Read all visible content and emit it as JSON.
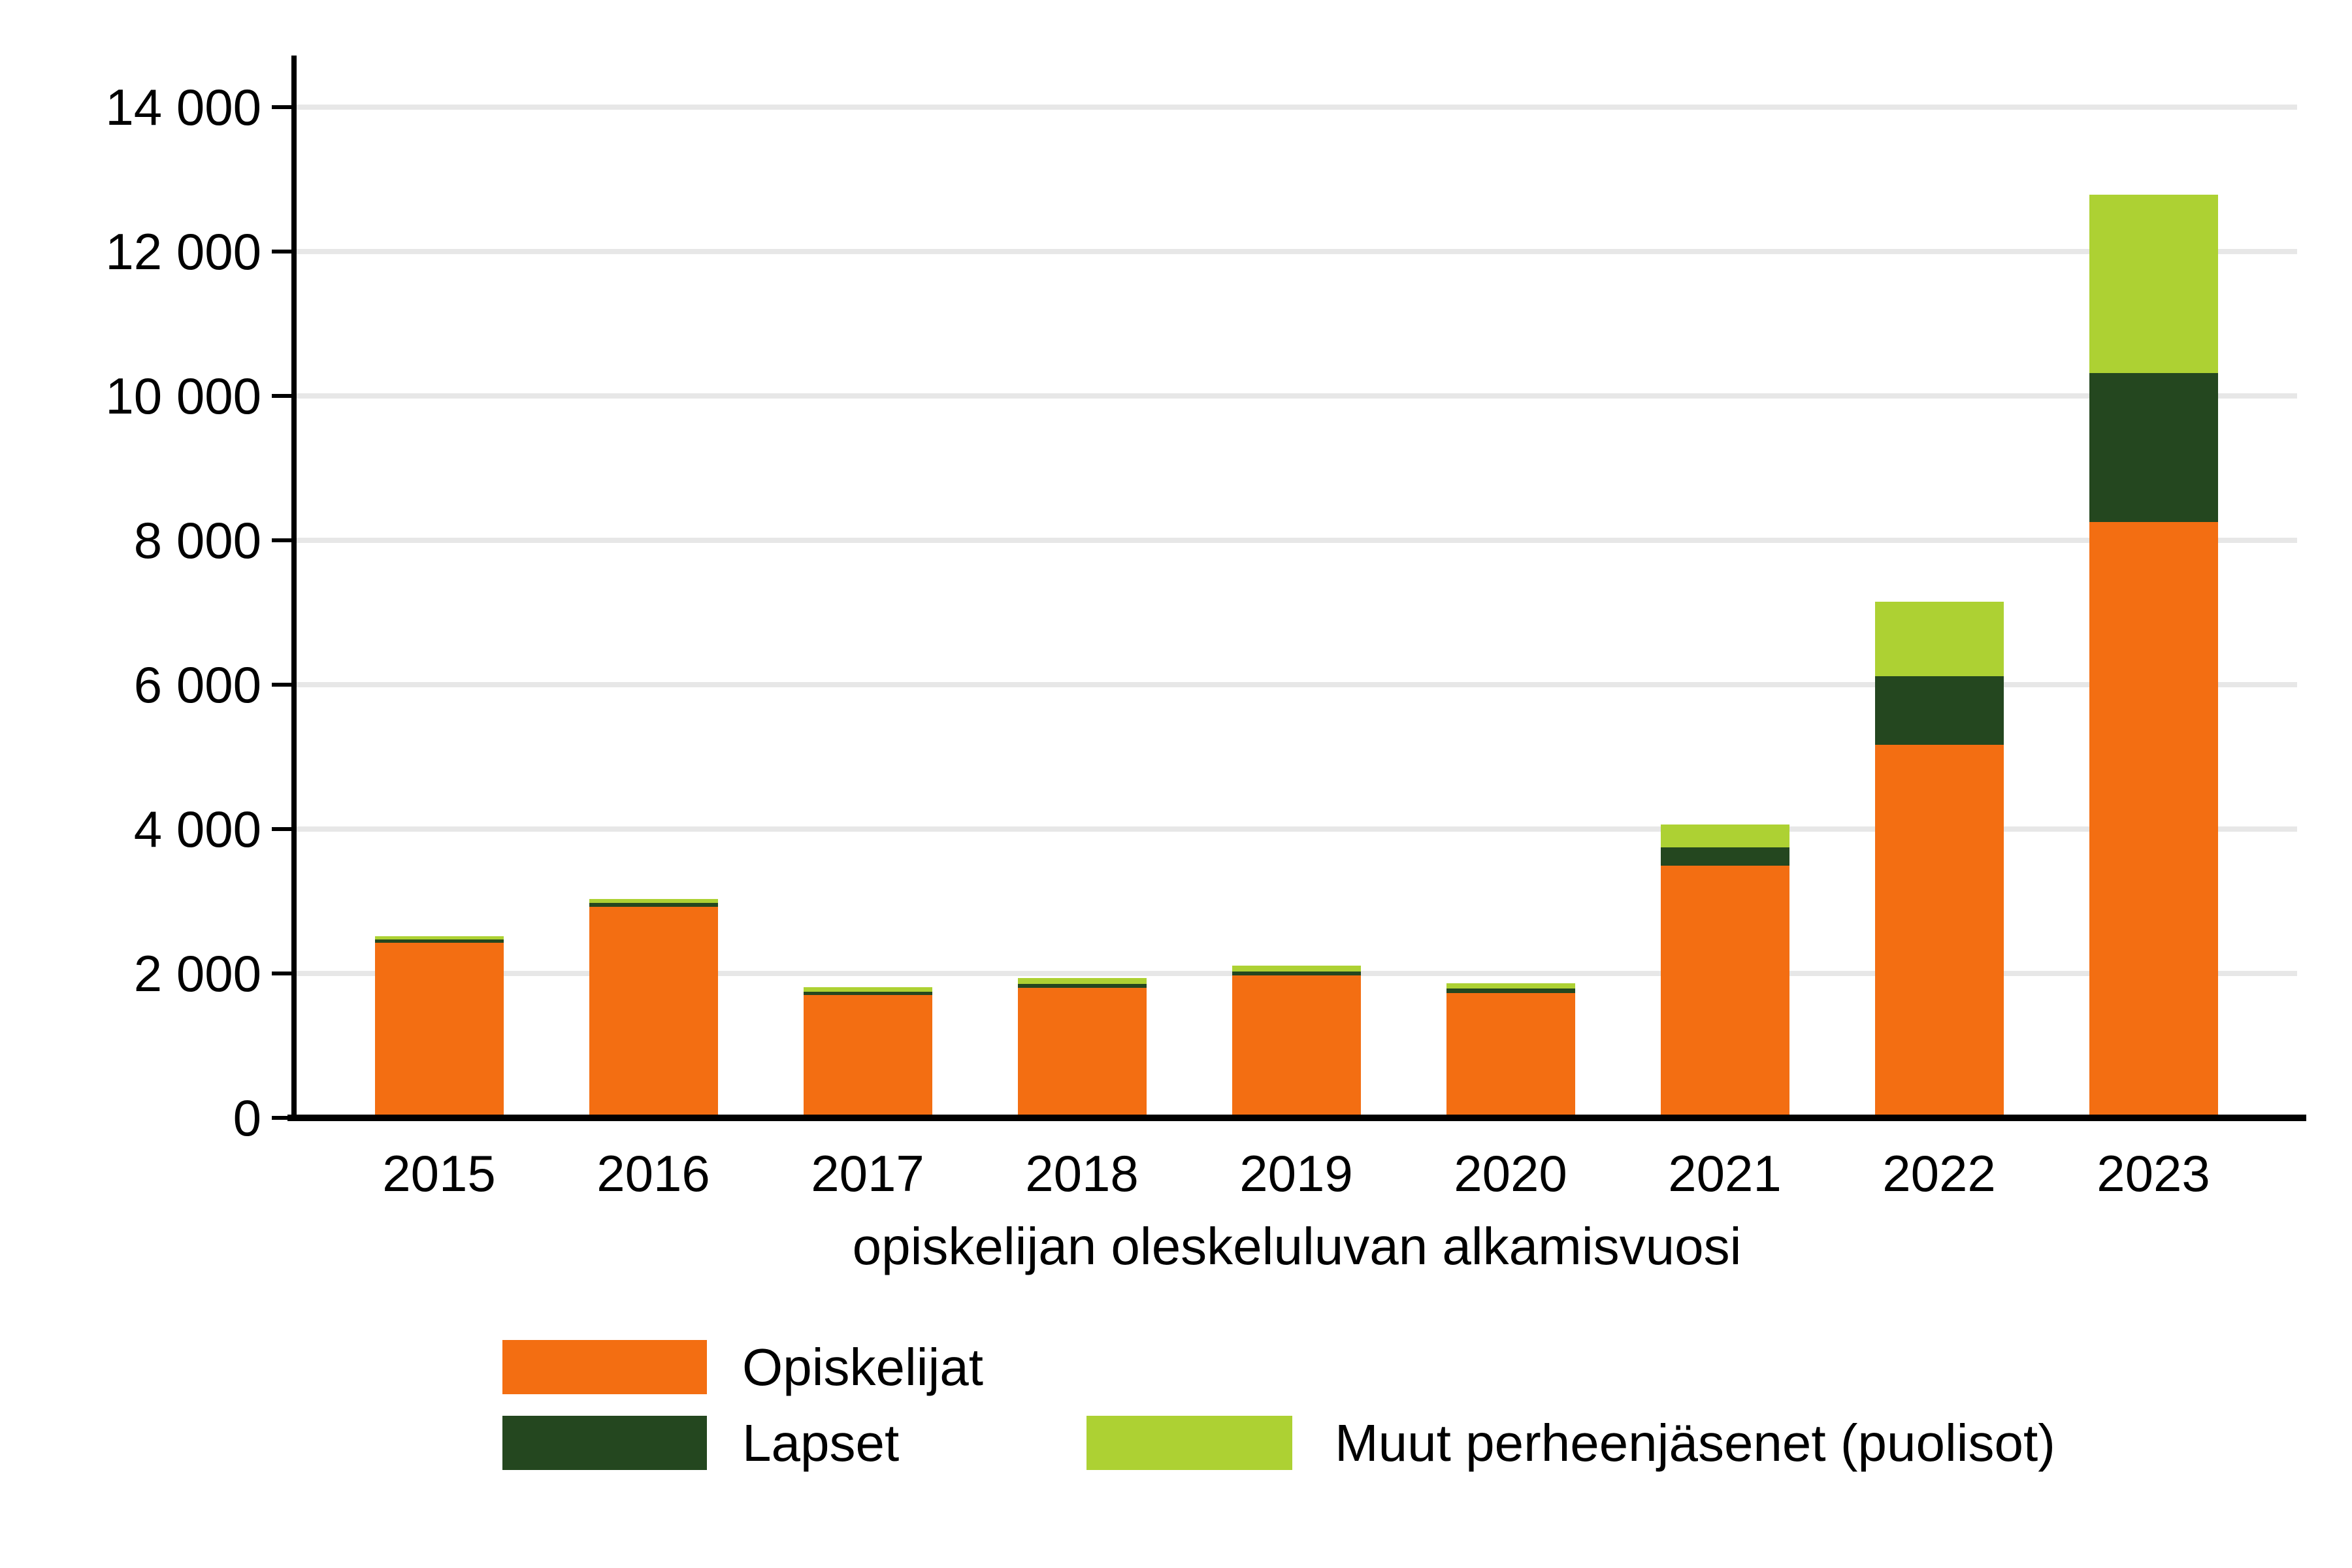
{
  "chart_data": {
    "type": "bar",
    "stacked": true,
    "title": "",
    "xlabel": "opiskelijan oleskeluluvan alkamisvuosi",
    "ylabel": "",
    "ylim": [
      0,
      14000
    ],
    "ytick_interval": 2000,
    "ytick_labels": [
      "0",
      "2 000",
      "4 000",
      "6 000",
      "8 000",
      "10 000",
      "12 000",
      "14 000"
    ],
    "grid": "horizontal-gridlines-on",
    "legend_position": "bottom",
    "categories": [
      "2015",
      "2016",
      "2017",
      "2018",
      "2019",
      "2020",
      "2021",
      "2022",
      "2023"
    ],
    "series": [
      {
        "name": "Opiskelijat",
        "color": "#f36e12",
        "values": [
          2425,
          2920,
          1705,
          1800,
          1970,
          1725,
          3490,
          5170,
          8250
        ]
      },
      {
        "name": "Lapset",
        "color": "#24471f",
        "values": [
          45,
          60,
          45,
          55,
          60,
          70,
          255,
          945,
          2065
        ]
      },
      {
        "name": "Muut perheenjäsenet (puolisot)",
        "color": "#add133",
        "values": [
          45,
          50,
          60,
          80,
          80,
          70,
          315,
          1030,
          2475
        ]
      }
    ],
    "totals": [
      2515,
      3030,
      1810,
      1935,
      2110,
      1865,
      4060,
      7145,
      12790
    ]
  },
  "colors": {
    "background": "#ffffff",
    "axis": "#000000",
    "gridline": "#e7e7e7",
    "text": "#000000"
  }
}
